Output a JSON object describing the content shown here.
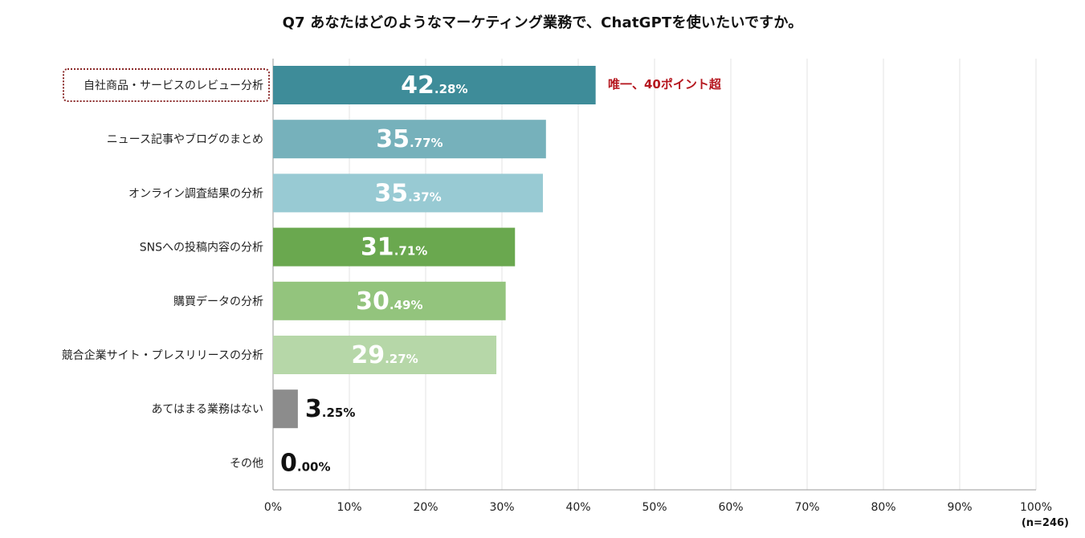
{
  "chart_data": {
    "type": "bar",
    "orientation": "horizontal",
    "title": "Q7 あなたはどのようなマーケティング業務で、ChatGPTを使いたいですか。",
    "categories": [
      "自社商品・サービスのレビュー分析",
      "ニュース記事やブログのまとめ",
      "オンライン調査結果の分析",
      "SNSへの投稿内容の分析",
      "購買データの分析",
      "競合企業サイト・プレスリリースの分析",
      "あてはまる業務はない",
      "その他"
    ],
    "values": [
      42.28,
      35.77,
      35.37,
      31.71,
      30.49,
      29.27,
      3.25,
      0.0
    ],
    "value_labels": [
      {
        "int": "42",
        "dec": ".28%"
      },
      {
        "int": "35",
        "dec": ".77%"
      },
      {
        "int": "35",
        "dec": ".37%"
      },
      {
        "int": "31",
        "dec": ".71%"
      },
      {
        "int": "30",
        "dec": ".49%"
      },
      {
        "int": "29",
        "dec": ".27%"
      },
      {
        "int": "3",
        "dec": ".25%"
      },
      {
        "int": "0",
        "dec": ".00%"
      }
    ],
    "colors": [
      "#3e8c99",
      "#76b1bb",
      "#98cad3",
      "#6aa84f",
      "#93c47d",
      "#b6d7a8",
      "#8c8c8c",
      "#8c8c8c"
    ],
    "xlim": [
      0,
      100
    ],
    "xticks": [
      "0%",
      "10%",
      "20%",
      "30%",
      "40%",
      "50%",
      "60%",
      "70%",
      "80%",
      "90%",
      "100%"
    ],
    "grid": true,
    "annotation": "唯一、40ポイント超",
    "note": "(n=246)"
  },
  "colors": {
    "grid": "#e3e3e3",
    "axis": "#999999",
    "annotation": "#b5161e"
  }
}
